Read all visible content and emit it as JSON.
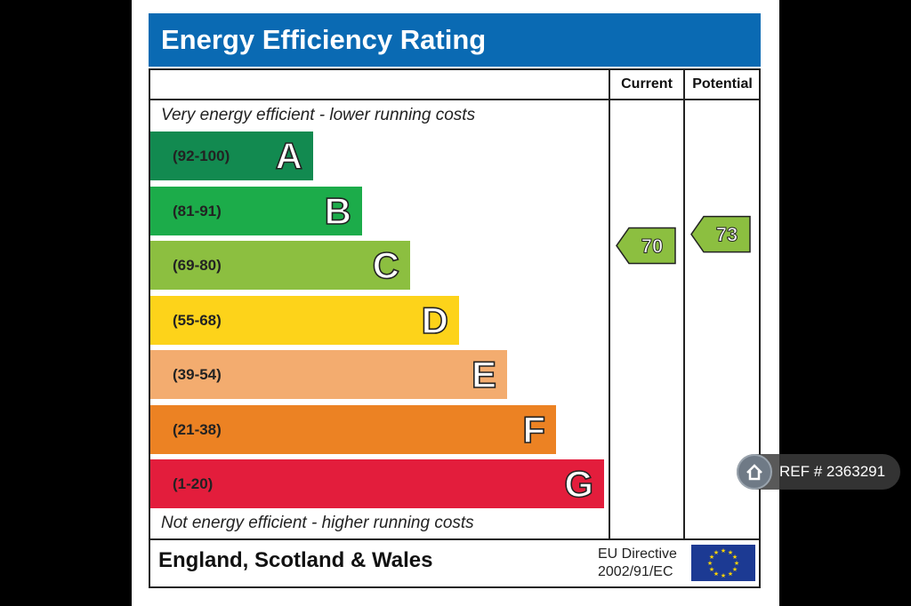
{
  "title": "Energy Efficiency Rating",
  "columns": {
    "current": "Current",
    "potential": "Potential"
  },
  "captions": {
    "top": "Very energy efficient - lower running costs",
    "bottom": "Not energy efficient - higher running costs"
  },
  "footer": {
    "region": "England, Scotland & Wales",
    "directive_line1": "EU Directive",
    "directive_line2": "2002/91/EC"
  },
  "ref_badge": {
    "label": "REF # 2363291"
  },
  "chart_data": {
    "type": "bar",
    "title": "Energy Efficiency Rating",
    "categories": [
      "A",
      "B",
      "C",
      "D",
      "E",
      "F",
      "G"
    ],
    "ranges": [
      "(92-100)",
      "(81-91)",
      "(69-80)",
      "(55-68)",
      "(39-54)",
      "(21-38)",
      "(1-20)"
    ],
    "colors": [
      "#128a50",
      "#1cac4a",
      "#8cbf40",
      "#fdd31a",
      "#f3ac6f",
      "#ec8223",
      "#e31d3c"
    ],
    "current": 70,
    "potential": 73,
    "current_band": "C",
    "potential_band": "C",
    "rating_color": "#8cbf40"
  }
}
